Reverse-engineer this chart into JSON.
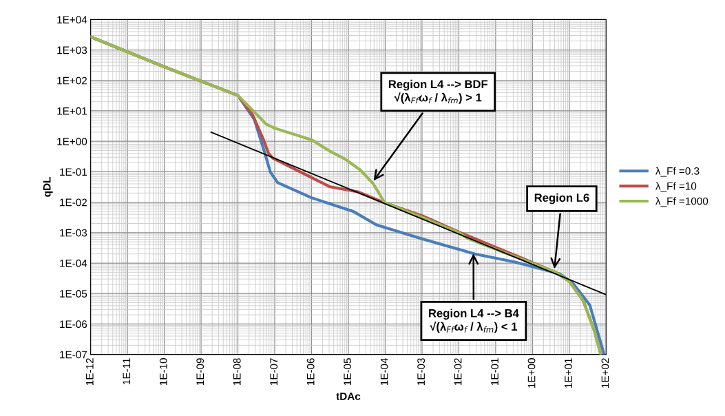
{
  "chart_data": {
    "type": "line",
    "xlabel": "tDAc",
    "ylabel": "qDL",
    "log": "xy",
    "grid": true,
    "legend": "right",
    "line_style": "solid",
    "marker": "none",
    "xlim": [
      1e-12,
      100
    ],
    "ylim": [
      1e-07,
      10000
    ],
    "xticks": [
      {
        "value": 1e-12,
        "label": "1E-12"
      },
      {
        "value": 1e-11,
        "label": "1E-11"
      },
      {
        "value": 1e-10,
        "label": "1E-10"
      },
      {
        "value": 1e-09,
        "label": "1E-09"
      },
      {
        "value": 1e-08,
        "label": "1E-08"
      },
      {
        "value": 1e-07,
        "label": "1E-07"
      },
      {
        "value": 1e-06,
        "label": "1E-06"
      },
      {
        "value": 1e-05,
        "label": "1E-05"
      },
      {
        "value": 0.0001,
        "label": "1E-04"
      },
      {
        "value": 0.001,
        "label": "1E-03"
      },
      {
        "value": 0.01,
        "label": "1E-02"
      },
      {
        "value": 0.1,
        "label": "1E-01"
      },
      {
        "value": 1,
        "label": "1E+00"
      },
      {
        "value": 10,
        "label": "1E+01"
      },
      {
        "value": 100,
        "label": "1E+02"
      }
    ],
    "yticks": [
      {
        "value": 1e-07,
        "label": "1E-07"
      },
      {
        "value": 1e-06,
        "label": "1E-06"
      },
      {
        "value": 1e-05,
        "label": "1E-05"
      },
      {
        "value": 0.0001,
        "label": "1E-04"
      },
      {
        "value": 0.001,
        "label": "1E-03"
      },
      {
        "value": 0.01,
        "label": "1E-02"
      },
      {
        "value": 0.1,
        "label": "1E-01"
      },
      {
        "value": 1,
        "label": "1E+00"
      },
      {
        "value": 10,
        "label": "1E+01"
      },
      {
        "value": 100,
        "label": "1E+02"
      },
      {
        "value": 1000,
        "label": "1E+03"
      },
      {
        "value": 10000,
        "label": "1E+04"
      }
    ],
    "series": [
      {
        "name": "λ_Ff =0.3",
        "color": "#4a7ebb",
        "x": [
          1e-12,
          1e-10,
          1e-08,
          2.8e-08,
          5e-08,
          7.6e-08,
          1.2e-07,
          1e-06,
          1.35e-05,
          5.8e-05,
          0.001,
          0.0275,
          0.32,
          5.6,
          13.2,
          36,
          87
        ],
        "values": [
          2700,
          280,
          32,
          5.2,
          0.55,
          0.098,
          0.044,
          0.014,
          0.005,
          0.0018,
          0.00063,
          0.0002,
          0.00011,
          4.4e-05,
          2e-05,
          4.2e-06,
          1.07e-07
        ]
      },
      {
        "name": "λ_Ff =10",
        "color": "#be4b48",
        "x": [
          1e-12,
          1e-10,
          1e-08,
          2.5e-08,
          5e-08,
          6.8e-08,
          8.9e-08,
          3.2e-06,
          1.8e-05,
          8.9e-05,
          0.001,
          0.01,
          4.3,
          10,
          24,
          48,
          71
        ],
        "values": [
          2700,
          280,
          32,
          7.4,
          1.1,
          0.4,
          0.28,
          0.032,
          0.022,
          0.01,
          0.0036,
          0.00105,
          5e-05,
          2.5e-05,
          5.8e-06,
          6e-07,
          1.07e-07
        ]
      },
      {
        "name": "λ_Ff =1000",
        "color": "#98b954",
        "x": [
          1e-12,
          1e-10,
          1e-08,
          2.5e-08,
          5.8e-08,
          1e-07,
          1e-06,
          3.3e-06,
          7.8e-06,
          2.1e-05,
          4.7e-05,
          9.5e-05,
          0.001,
          0.01,
          0.018,
          4.3,
          10,
          24,
          48,
          71
        ],
        "values": [
          2700,
          280,
          32,
          10.5,
          3.7,
          2.7,
          1.12,
          0.46,
          0.27,
          0.115,
          0.041,
          0.01,
          0.0032,
          0.001,
          0.00063,
          5e-05,
          2.5e-05,
          5.8e-06,
          6e-07,
          1.07e-07
        ]
      },
      {
        "type": "line",
        "color": "#000000",
        "x": [
          1.86e-09,
          100
        ],
        "values": [
          2.0,
          9.2e-06
        ]
      }
    ],
    "annotations": [
      {
        "text": "Region L4 --> BDF\n√(λ$_{Ff}$ω$_{f}$ / λ$_{fm}$) > 1",
        "x": 4.5e-05,
        "y": 0.045
      },
      {
        "text": "Region L6",
        "x": 3.9,
        "y": 5.6e-05
      },
      {
        "text": "Region L4 --> B4\n√(λ$_{Ff}$ω$_{f}$ / λ$_{fm}$) < 1",
        "x": 0.025,
        "y": 0.00024
      }
    ]
  }
}
